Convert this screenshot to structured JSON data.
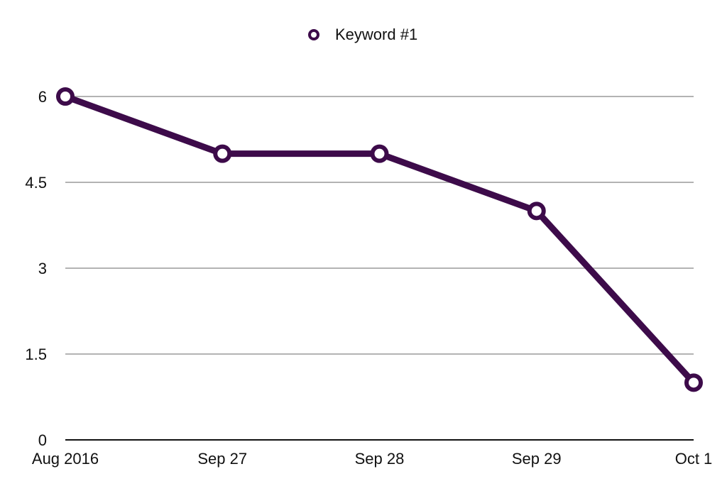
{
  "chart_data": {
    "type": "line",
    "categories": [
      "Aug 2016",
      "Sep 27",
      "Sep 28",
      "Sep 29",
      "Oct 1"
    ],
    "series": [
      {
        "name": "Keyword #1",
        "values": [
          6,
          5,
          5,
          4,
          1
        ],
        "color": "#3d0b4a"
      }
    ],
    "yticks": [
      "0",
      "1.5",
      "3",
      "4.5",
      "6"
    ],
    "ylim": [
      0,
      6
    ],
    "grid": true,
    "legend_position": "top-center"
  }
}
